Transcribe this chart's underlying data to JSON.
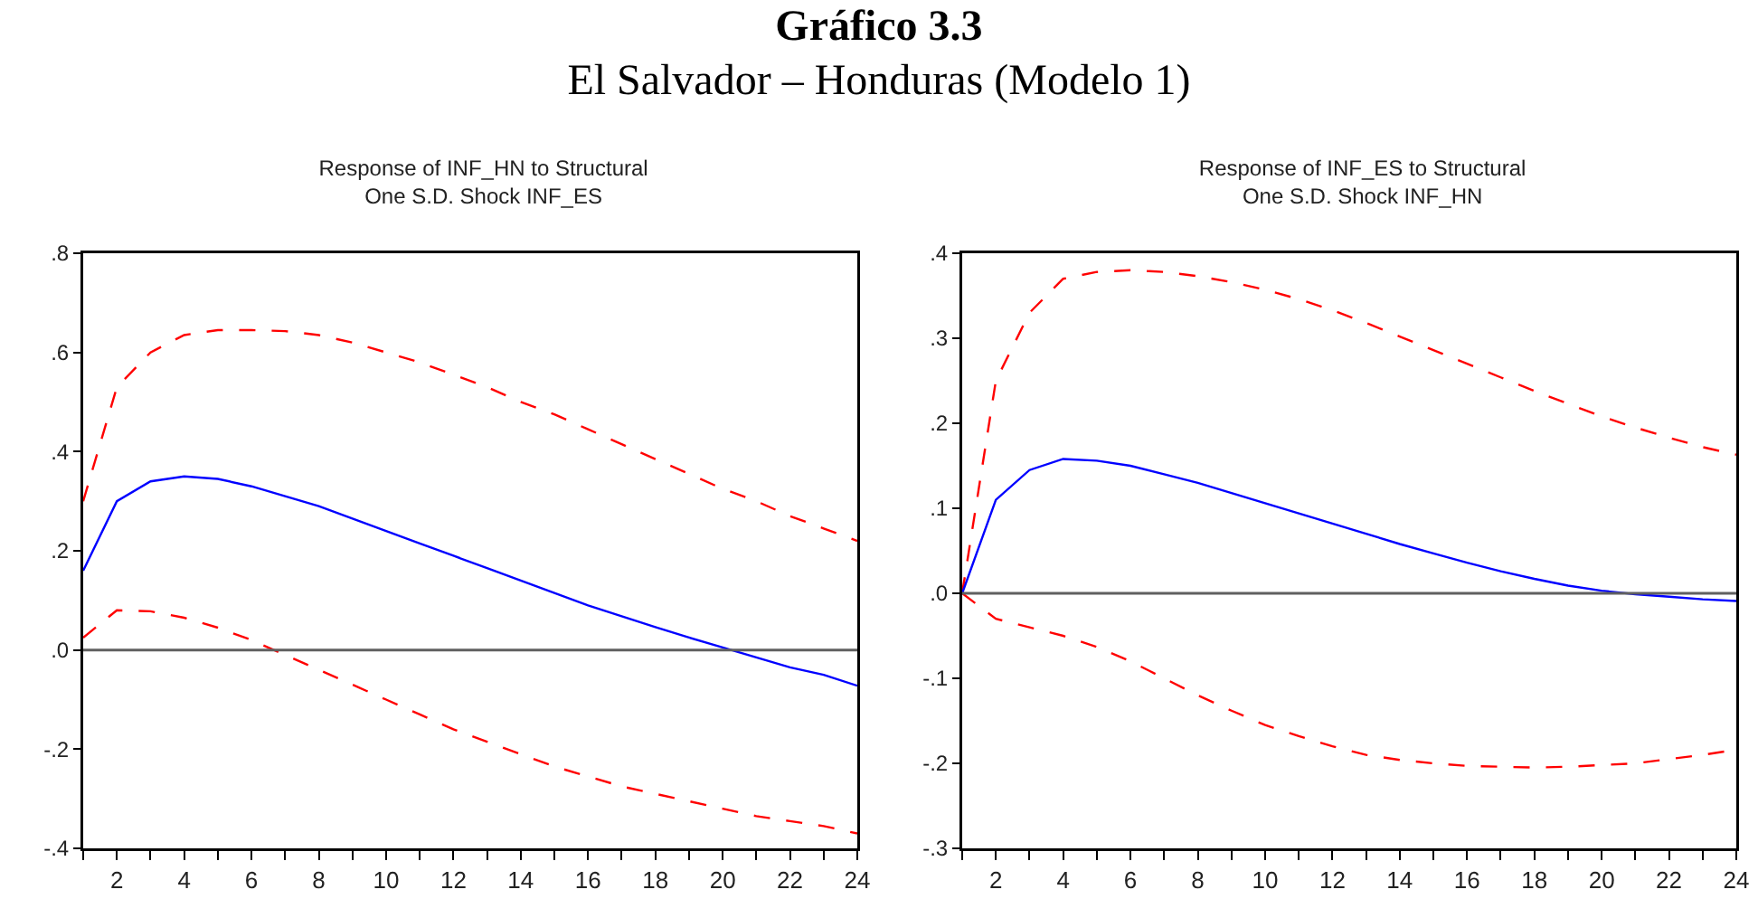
{
  "chart_data": [
    {
      "type": "line",
      "title": "Response of INF_HN to Structural\nOne S.D. Shock INF_ES",
      "annotations": [
        "Gráfico 3.3",
        "El Salvador – Honduras (Modelo 1)"
      ],
      "x": [
        1,
        2,
        3,
        4,
        5,
        6,
        7,
        8,
        9,
        10,
        11,
        12,
        13,
        14,
        15,
        16,
        17,
        18,
        19,
        20,
        21,
        22,
        23,
        24
      ],
      "xlim": [
        1,
        24
      ],
      "xticks": [
        {
          "value": 1,
          "label": null
        },
        2,
        {
          "value": 3,
          "label": null
        },
        4,
        {
          "value": 5,
          "label": null
        },
        6,
        {
          "value": 7,
          "label": null
        },
        8,
        {
          "value": 9,
          "label": null
        },
        10,
        {
          "value": 11,
          "label": null
        },
        12,
        {
          "value": 13,
          "label": null
        },
        14,
        {
          "value": 15,
          "label": null
        },
        16,
        {
          "value": 17,
          "label": null
        },
        18,
        {
          "value": 19,
          "label": null
        },
        20,
        {
          "value": 21,
          "label": null
        },
        22,
        {
          "value": 23,
          "label": null
        },
        24
      ],
      "ylim": [
        -0.4,
        0.8
      ],
      "yticks": [
        {
          "value": -0.4,
          "label": "-.4"
        },
        {
          "value": -0.2,
          "label": "-.2"
        },
        {
          "value": 0,
          "label": ".0"
        },
        {
          "value": 0.2,
          "label": ".2"
        },
        {
          "value": 0.4,
          "label": ".4"
        },
        {
          "value": 0.6,
          "label": ".6"
        },
        {
          "value": 0.8,
          "label": ".8"
        }
      ],
      "ref_lines": [
        {
          "axis": "y",
          "value": 0,
          "color": "#606060"
        }
      ],
      "series": [
        {
          "color": "#ff0000",
          "line_style": "dashed",
          "values": [
            0.3,
            0.53,
            0.6,
            0.635,
            0.645,
            0.645,
            0.643,
            0.635,
            0.62,
            0.6,
            0.58,
            0.555,
            0.53,
            0.5,
            0.475,
            0.445,
            0.415,
            0.385,
            0.355,
            0.325,
            0.3,
            0.27,
            0.245,
            0.22
          ]
        },
        {
          "color": "#0000ff",
          "line_style": "solid",
          "values": [
            0.16,
            0.3,
            0.34,
            0.35,
            0.345,
            0.33,
            0.31,
            0.29,
            0.265,
            0.24,
            0.215,
            0.19,
            0.165,
            0.14,
            0.115,
            0.09,
            0.068,
            0.046,
            0.025,
            0.005,
            -0.015,
            -0.035,
            -0.05,
            -0.072
          ]
        },
        {
          "color": "#ff0000",
          "line_style": "dashed",
          "values": [
            0.025,
            0.08,
            0.078,
            0.065,
            0.045,
            0.02,
            -0.01,
            -0.04,
            -0.07,
            -0.1,
            -0.13,
            -0.16,
            -0.185,
            -0.21,
            -0.235,
            -0.255,
            -0.275,
            -0.29,
            -0.305,
            -0.32,
            -0.335,
            -0.345,
            -0.355,
            -0.37
          ]
        }
      ]
    },
    {
      "type": "line",
      "title": "Response of INF_ES to Structural\nOne S.D. Shock INF_HN",
      "x": [
        1,
        2,
        3,
        4,
        5,
        6,
        7,
        8,
        9,
        10,
        11,
        12,
        13,
        14,
        15,
        16,
        17,
        18,
        19,
        20,
        21,
        22,
        23,
        24
      ],
      "xlim": [
        1,
        24
      ],
      "xticks": [
        {
          "value": 1,
          "label": null
        },
        2,
        {
          "value": 3,
          "label": null
        },
        4,
        {
          "value": 5,
          "label": null
        },
        6,
        {
          "value": 7,
          "label": null
        },
        8,
        {
          "value": 9,
          "label": null
        },
        10,
        {
          "value": 11,
          "label": null
        },
        12,
        {
          "value": 13,
          "label": null
        },
        14,
        {
          "value": 15,
          "label": null
        },
        16,
        {
          "value": 17,
          "label": null
        },
        18,
        {
          "value": 19,
          "label": null
        },
        20,
        {
          "value": 21,
          "label": null
        },
        22,
        {
          "value": 23,
          "label": null
        },
        24
      ],
      "ylim": [
        -0.3,
        0.4
      ],
      "yticks": [
        {
          "value": -0.3,
          "label": "-.3"
        },
        {
          "value": -0.2,
          "label": "-.2"
        },
        {
          "value": -0.1,
          "label": "-.1"
        },
        {
          "value": 0,
          "label": ".0"
        },
        {
          "value": 0.1,
          "label": ".1"
        },
        {
          "value": 0.2,
          "label": ".2"
        },
        {
          "value": 0.3,
          "label": ".3"
        },
        {
          "value": 0.4,
          "label": ".4"
        }
      ],
      "ref_lines": [
        {
          "axis": "y",
          "value": 0,
          "color": "#606060"
        }
      ],
      "series": [
        {
          "color": "#ff0000",
          "line_style": "dashed",
          "values": [
            0,
            0.25,
            0.33,
            0.37,
            0.378,
            0.38,
            0.378,
            0.373,
            0.366,
            0.357,
            0.346,
            0.333,
            0.318,
            0.302,
            0.286,
            0.27,
            0.254,
            0.238,
            0.223,
            0.208,
            0.195,
            0.183,
            0.172,
            0.163
          ]
        },
        {
          "color": "#0000ff",
          "line_style": "solid",
          "values": [
            0,
            0.11,
            0.145,
            0.158,
            0.156,
            0.15,
            0.14,
            0.13,
            0.118,
            0.106,
            0.094,
            0.082,
            0.07,
            0.058,
            0.047,
            0.036,
            0.026,
            0.017,
            0.009,
            0.003,
            -0.001,
            -0.004,
            -0.007,
            -0.009
          ]
        },
        {
          "color": "#ff0000",
          "line_style": "dashed",
          "values": [
            0,
            -0.03,
            -0.04,
            -0.05,
            -0.063,
            -0.08,
            -0.1,
            -0.12,
            -0.138,
            -0.155,
            -0.168,
            -0.18,
            -0.19,
            -0.196,
            -0.2,
            -0.203,
            -0.204,
            -0.205,
            -0.204,
            -0.202,
            -0.2,
            -0.195,
            -0.19,
            -0.184
          ]
        }
      ]
    }
  ]
}
